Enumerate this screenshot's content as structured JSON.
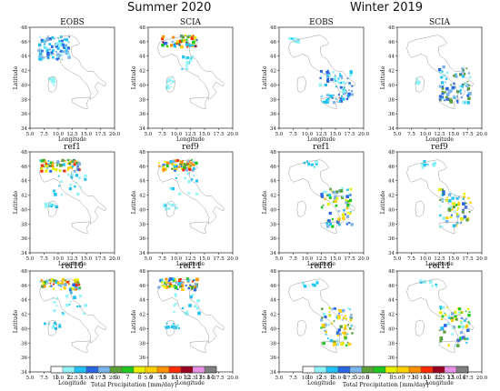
{
  "seasons": [
    "Summer 2020",
    "Winter 2019"
  ],
  "chart_data": [
    {
      "type": "heatmap",
      "season": "Summer 2020",
      "title": "EOBS",
      "xlabel": "Longitude",
      "ylabel": "Latitude",
      "xlim": [
        5.0,
        20.0
      ],
      "ylim": [
        34,
        48
      ],
      "xticks": [
        "5.0",
        "7.5",
        "10.0",
        "12.5",
        "15.0",
        "17.5",
        "20.0"
      ],
      "yticks": [
        "34",
        "36",
        "38",
        "40",
        "42",
        "44",
        "46",
        "48"
      ]
    },
    {
      "type": "heatmap",
      "season": "Summer 2020",
      "title": "SCIA",
      "xlabel": "Longitude",
      "ylabel": "Latitude",
      "xlim": [
        5.0,
        20.0
      ],
      "ylim": [
        34,
        48
      ],
      "xticks": [
        "5.0",
        "7.5",
        "10.0",
        "12.5",
        "15.0",
        "17.5",
        "20.0"
      ],
      "yticks": [
        "34",
        "36",
        "38",
        "40",
        "42",
        "44",
        "46",
        "48"
      ]
    },
    {
      "type": "heatmap",
      "season": "Summer 2020",
      "title": "ref1",
      "xlabel": "Longitude",
      "ylabel": "Latitude",
      "xlim": [
        5.0,
        20.0
      ],
      "ylim": [
        34,
        48
      ],
      "xticks": [
        "5.0",
        "7.5",
        "10.0",
        "12.5",
        "15.0",
        "17.5",
        "20.0"
      ],
      "yticks": [
        "34",
        "36",
        "38",
        "40",
        "42",
        "44",
        "46",
        "48"
      ]
    },
    {
      "type": "heatmap",
      "season": "Summer 2020",
      "title": "ref9",
      "xlabel": "Longitude",
      "ylabel": "Latitude",
      "xlim": [
        5.0,
        20.0
      ],
      "ylim": [
        34,
        48
      ],
      "xticks": [
        "5.0",
        "7.5",
        "10.0",
        "12.5",
        "15.0",
        "17.5",
        "20.0"
      ],
      "yticks": [
        "34",
        "36",
        "38",
        "40",
        "42",
        "44",
        "46",
        "48"
      ]
    },
    {
      "type": "heatmap",
      "season": "Summer 2020",
      "title": "ref10",
      "xlabel": "Longitude",
      "ylabel": "Latitude",
      "xlim": [
        5.0,
        20.0
      ],
      "ylim": [
        34,
        48
      ],
      "xticks": [
        "5.0",
        "7.5",
        "10.0",
        "12.5",
        "15.0",
        "17.5",
        "20.0"
      ],
      "yticks": [
        "34",
        "36",
        "38",
        "40",
        "42",
        "44",
        "46",
        "48"
      ]
    },
    {
      "type": "heatmap",
      "season": "Summer 2020",
      "title": "ref11",
      "xlabel": "Longitude",
      "ylabel": "Latitude",
      "xlim": [
        5.0,
        20.0
      ],
      "ylim": [
        34,
        48
      ],
      "xticks": [
        "5.0",
        "7.5",
        "10.0",
        "12.5",
        "15.0",
        "17.5",
        "20.0"
      ],
      "yticks": [
        "34",
        "36",
        "38",
        "40",
        "42",
        "44",
        "46",
        "48"
      ]
    },
    {
      "type": "heatmap",
      "season": "Winter 2019",
      "title": "EOBS",
      "xlabel": "Longitude",
      "ylabel": "Latitude",
      "xlim": [
        5.0,
        20.0
      ],
      "ylim": [
        34,
        48
      ],
      "xticks": [
        "5.0",
        "7.5",
        "10.0",
        "12.5",
        "15.0",
        "17.5",
        "20.0"
      ],
      "yticks": [
        "34",
        "36",
        "38",
        "40",
        "42",
        "44",
        "46",
        "48"
      ]
    },
    {
      "type": "heatmap",
      "season": "Winter 2019",
      "title": "SCIA",
      "xlabel": "Longitude",
      "ylabel": "Latitude",
      "xlim": [
        5.0,
        20.0
      ],
      "ylim": [
        34,
        48
      ],
      "xticks": [
        "5.0",
        "7.5",
        "10.0",
        "12.5",
        "15.0",
        "17.5",
        "20.0"
      ],
      "yticks": [
        "34",
        "36",
        "38",
        "40",
        "42",
        "44",
        "46",
        "48"
      ]
    },
    {
      "type": "heatmap",
      "season": "Winter 2019",
      "title": "ref1",
      "xlabel": "Longitude",
      "ylabel": "Latitude",
      "xlim": [
        5.0,
        20.0
      ],
      "ylim": [
        34,
        48
      ],
      "xticks": [
        "5.0",
        "7.5",
        "10.0",
        "12.5",
        "15.0",
        "17.5",
        "20.0"
      ],
      "yticks": [
        "34",
        "36",
        "38",
        "40",
        "42",
        "44",
        "46",
        "48"
      ]
    },
    {
      "type": "heatmap",
      "season": "Winter 2019",
      "title": "ref9",
      "xlabel": "Longitude",
      "ylabel": "Latitude",
      "xlim": [
        5.0,
        20.0
      ],
      "ylim": [
        34,
        48
      ],
      "xticks": [
        "5.0",
        "7.5",
        "10.0",
        "12.5",
        "15.0",
        "17.5",
        "20.0"
      ],
      "yticks": [
        "34",
        "36",
        "38",
        "40",
        "42",
        "44",
        "46",
        "48"
      ]
    },
    {
      "type": "heatmap",
      "season": "Winter 2019",
      "title": "ref10",
      "xlabel": "Longitude",
      "ylabel": "Latitude",
      "xlim": [
        5.0,
        20.0
      ],
      "ylim": [
        34,
        48
      ],
      "xticks": [
        "5.0",
        "7.5",
        "10.0",
        "12.5",
        "15.0",
        "17.5",
        "20.0"
      ],
      "yticks": [
        "34",
        "36",
        "38",
        "40",
        "42",
        "44",
        "46",
        "48"
      ]
    },
    {
      "type": "heatmap",
      "season": "Winter 2019",
      "title": "ref11",
      "xlabel": "Longitude",
      "ylabel": "Latitude",
      "xlim": [
        5.0,
        20.0
      ],
      "ylim": [
        34,
        48
      ],
      "xticks": [
        "5.0",
        "7.5",
        "10.0",
        "12.5",
        "15.0",
        "17.5",
        "20.0"
      ],
      "yticks": [
        "34",
        "36",
        "38",
        "40",
        "42",
        "44",
        "46",
        "48"
      ]
    }
  ],
  "colorbar": {
    "label": "Total Precipitation [mm/day]",
    "ticks": [
      "1",
      "2",
      "3",
      "4",
      "5",
      "6",
      "7",
      "8",
      "9",
      "10",
      "11",
      "12",
      "13",
      "14"
    ],
    "colors": [
      "#ffffff",
      "#8ff3f7",
      "#21c3f2",
      "#2a66e3",
      "#7cb3e8",
      "#5c9e3a",
      "#1ec81e",
      "#e6f000",
      "#ffd000",
      "#ff9000",
      "#ff2a00",
      "#9b0020",
      "#e690e6",
      "#7f7f7f"
    ]
  }
}
